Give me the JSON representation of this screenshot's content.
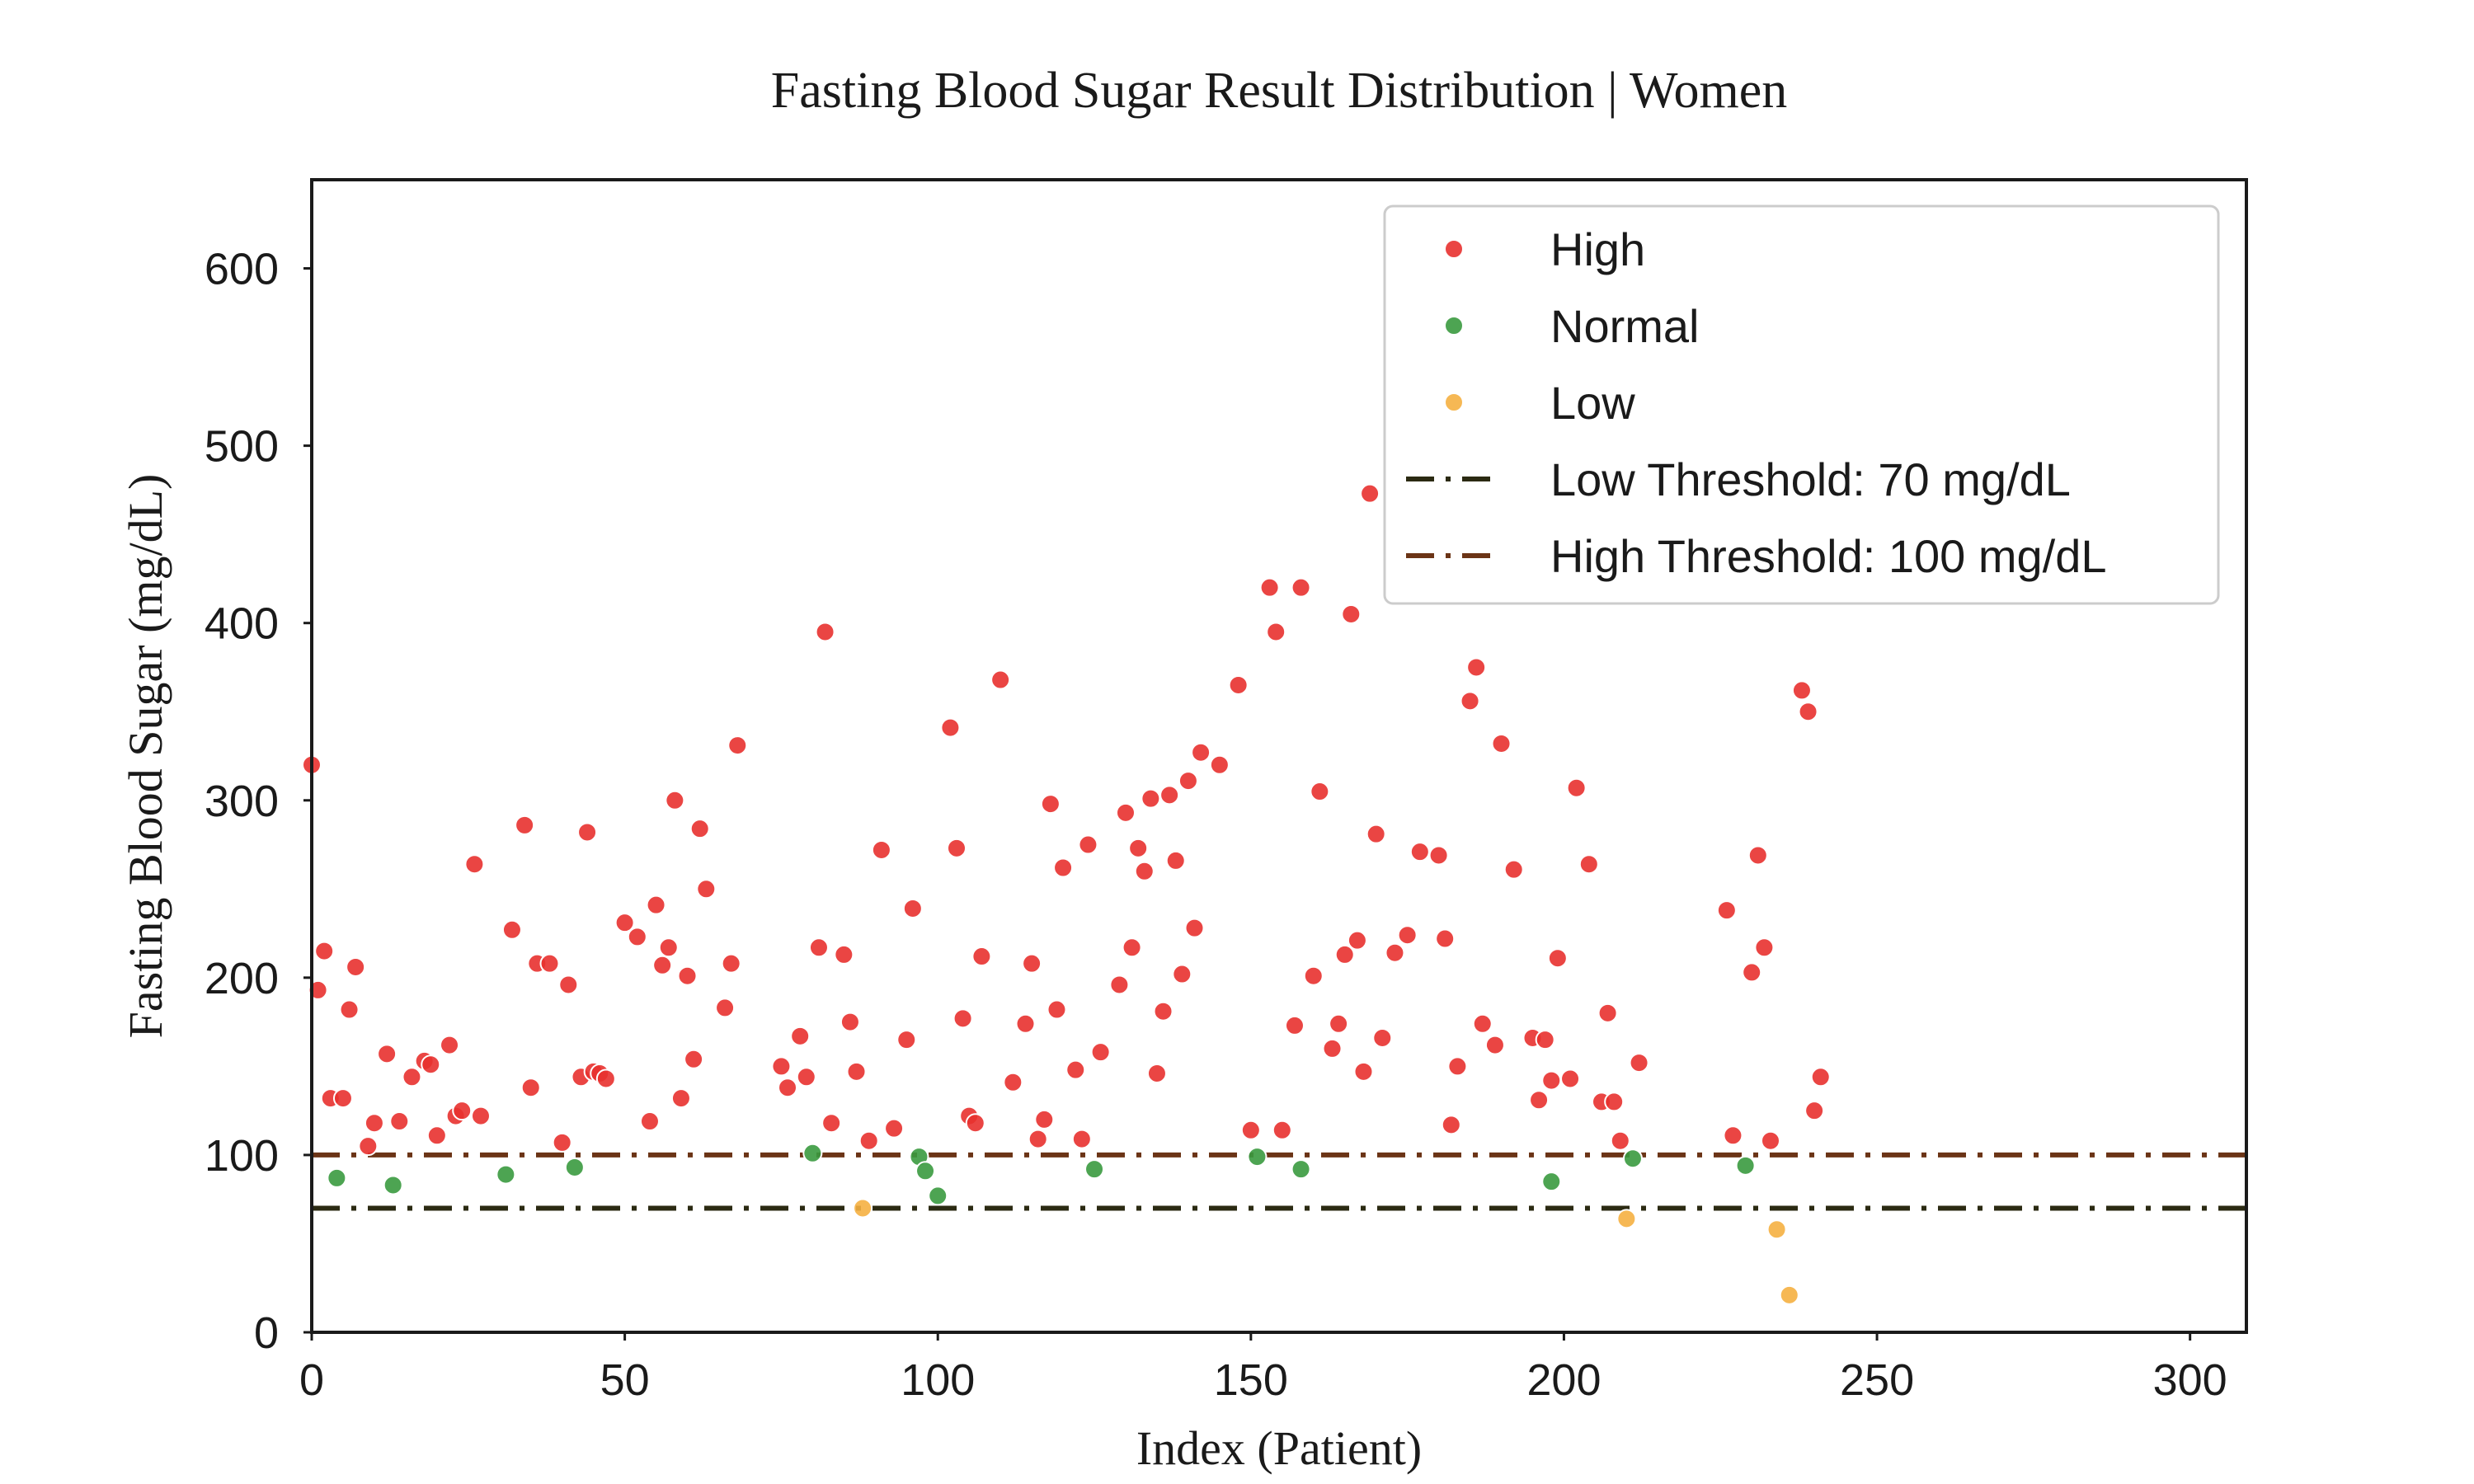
{
  "chart_data": {
    "type": "scatter",
    "title": "Fasting Blood Sugar Result Distribution | Women",
    "xlabel": "Index (Patient)",
    "ylabel": "Fasting Blood Sugar (mg/dL)",
    "xlim": [
      0,
      309
    ],
    "ylim": [
      0,
      650
    ],
    "xticks": [
      0,
      50,
      100,
      150,
      200,
      250,
      300
    ],
    "yticks": [
      0,
      100,
      200,
      300,
      400,
      500,
      600
    ],
    "grid": false,
    "legend_position": "top-right",
    "series": [
      {
        "name": "High",
        "color": "#e8312f",
        "points": [
          [
            0,
            320
          ],
          [
            1,
            193
          ],
          [
            2,
            215
          ],
          [
            3,
            132
          ],
          [
            5,
            132
          ],
          [
            6,
            182
          ],
          [
            7,
            206
          ],
          [
            9,
            105
          ],
          [
            10,
            118
          ],
          [
            12,
            157
          ],
          [
            14,
            119
          ],
          [
            16,
            144
          ],
          [
            18,
            153
          ],
          [
            19,
            151
          ],
          [
            20,
            111
          ],
          [
            22,
            162
          ],
          [
            23,
            122
          ],
          [
            24,
            125
          ],
          [
            26,
            264
          ],
          [
            27,
            122
          ],
          [
            32,
            227
          ],
          [
            34,
            286
          ],
          [
            35,
            138
          ],
          [
            36,
            208
          ],
          [
            38,
            208
          ],
          [
            40,
            107
          ],
          [
            41,
            196
          ],
          [
            43,
            144
          ],
          [
            44,
            282
          ],
          [
            45,
            147
          ],
          [
            46,
            146
          ],
          [
            47,
            143
          ],
          [
            50,
            231
          ],
          [
            52,
            223
          ],
          [
            54,
            119
          ],
          [
            55,
            241
          ],
          [
            56,
            207
          ],
          [
            57,
            217
          ],
          [
            58,
            300
          ],
          [
            59,
            132
          ],
          [
            60,
            201
          ],
          [
            61,
            154
          ],
          [
            62,
            284
          ],
          [
            63,
            250
          ],
          [
            66,
            183
          ],
          [
            67,
            208
          ],
          [
            68,
            331
          ],
          [
            75,
            150
          ],
          [
            76,
            138
          ],
          [
            78,
            167
          ],
          [
            79,
            144
          ],
          [
            81,
            217
          ],
          [
            82,
            395
          ],
          [
            83,
            118
          ],
          [
            85,
            213
          ],
          [
            86,
            175
          ],
          [
            87,
            147
          ],
          [
            89,
            108
          ],
          [
            91,
            272
          ],
          [
            93,
            115
          ],
          [
            95,
            165
          ],
          [
            96,
            239
          ],
          [
            102,
            341
          ],
          [
            103,
            273
          ],
          [
            104,
            177
          ],
          [
            105,
            122
          ],
          [
            106,
            118
          ],
          [
            107,
            212
          ],
          [
            110,
            368
          ],
          [
            112,
            141
          ],
          [
            114,
            174
          ],
          [
            115,
            208
          ],
          [
            116,
            109
          ],
          [
            117,
            120
          ],
          [
            118,
            298
          ],
          [
            119,
            182
          ],
          [
            120,
            262
          ],
          [
            122,
            148
          ],
          [
            123,
            109
          ],
          [
            124,
            275
          ],
          [
            126,
            158
          ],
          [
            129,
            196
          ],
          [
            130,
            293
          ],
          [
            131,
            217
          ],
          [
            132,
            273
          ],
          [
            133,
            260
          ],
          [
            134,
            301
          ],
          [
            135,
            146
          ],
          [
            136,
            181
          ],
          [
            137,
            303
          ],
          [
            138,
            266
          ],
          [
            139,
            202
          ],
          [
            140,
            311
          ],
          [
            141,
            228
          ],
          [
            142,
            327
          ],
          [
            145,
            320
          ],
          [
            148,
            365
          ],
          [
            150,
            114
          ],
          [
            153,
            420
          ],
          [
            154,
            395
          ],
          [
            155,
            114
          ],
          [
            157,
            173
          ],
          [
            158,
            420
          ],
          [
            160,
            201
          ],
          [
            161,
            305
          ],
          [
            163,
            160
          ],
          [
            164,
            174
          ],
          [
            165,
            213
          ],
          [
            166,
            405
          ],
          [
            167,
            221
          ],
          [
            168,
            147
          ],
          [
            169,
            473
          ],
          [
            170,
            281
          ],
          [
            171,
            166
          ],
          [
            173,
            214
          ],
          [
            175,
            224
          ],
          [
            177,
            271
          ],
          [
            180,
            269
          ],
          [
            181,
            222
          ],
          [
            182,
            117
          ],
          [
            183,
            150
          ],
          [
            185,
            356
          ],
          [
            186,
            375
          ],
          [
            187,
            174
          ],
          [
            189,
            162
          ],
          [
            190,
            332
          ],
          [
            192,
            261
          ],
          [
            195,
            166
          ],
          [
            196,
            131
          ],
          [
            197,
            165
          ],
          [
            198,
            142
          ],
          [
            199,
            211
          ],
          [
            201,
            143
          ],
          [
            202,
            307
          ],
          [
            204,
            264
          ],
          [
            206,
            130
          ],
          [
            207,
            180
          ],
          [
            208,
            130
          ],
          [
            209,
            108
          ],
          [
            212,
            152
          ],
          [
            226,
            238
          ],
          [
            227,
            111
          ],
          [
            230,
            203
          ],
          [
            231,
            269
          ],
          [
            232,
            217
          ],
          [
            233,
            108
          ],
          [
            238,
            362
          ],
          [
            239,
            350
          ],
          [
            240,
            125
          ],
          [
            241,
            144
          ]
        ]
      },
      {
        "name": "Normal",
        "color": "#3a9a3f",
        "points": [
          [
            4,
            87
          ],
          [
            13,
            83
          ],
          [
            31,
            89
          ],
          [
            42,
            93
          ],
          [
            80,
            101
          ],
          [
            97,
            99
          ],
          [
            98,
            91
          ],
          [
            100,
            77
          ],
          [
            125,
            92
          ],
          [
            151,
            99
          ],
          [
            158,
            92
          ],
          [
            198,
            85
          ],
          [
            211,
            98
          ],
          [
            229,
            94
          ]
        ]
      },
      {
        "name": "Low",
        "color": "#f5b041",
        "points": [
          [
            88,
            70
          ],
          [
            210,
            64
          ],
          [
            234,
            58
          ],
          [
            236,
            21
          ]
        ]
      }
    ],
    "threshold_lines": [
      {
        "name": "Low Threshold: 70 mg/dL",
        "y": 70,
        "color": "#2b2a12",
        "style": "dashdot"
      },
      {
        "name": "High Threshold: 100 mg/dL",
        "y": 100,
        "color": "#6b3416",
        "style": "dashdot"
      }
    ]
  }
}
